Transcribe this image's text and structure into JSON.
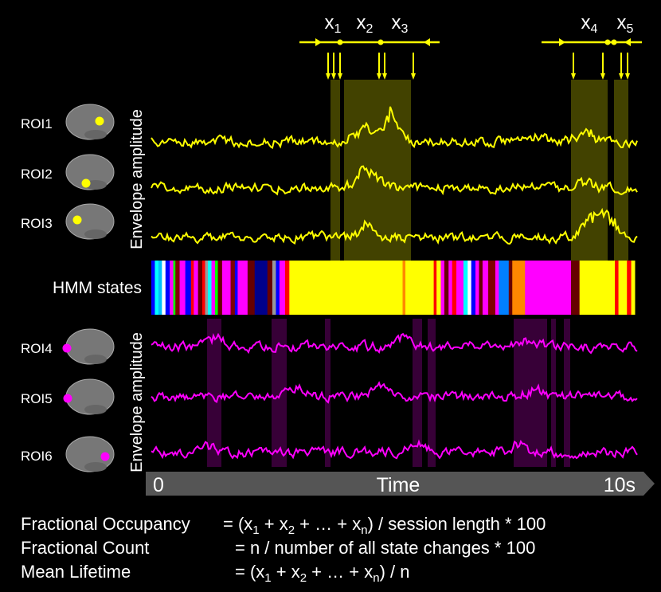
{
  "roi_labels": [
    "ROI1",
    "ROI2",
    "ROI3",
    "ROI4",
    "ROI5",
    "ROI6"
  ],
  "top_axis_label": "Envelope amplitude",
  "bottom_axis_label": "Envelope amplitude",
  "hmm_label": "HMM states",
  "time_axis": {
    "start": "0",
    "label": "Time",
    "end": "10s"
  },
  "intervals": [
    {
      "name": "x",
      "sub": "1"
    },
    {
      "name": "x",
      "sub": "2"
    },
    {
      "name": "x",
      "sub": "3"
    },
    {
      "name": "x",
      "sub": "4"
    },
    {
      "name": "x",
      "sub": "5"
    }
  ],
  "formulas": [
    {
      "name": "Fractional Occupancy",
      "parts": [
        "= (x",
        "1",
        " + x",
        "2",
        " + … + x",
        "n",
        ") / session length * 100"
      ]
    },
    {
      "name": "Fractional Count",
      "parts": [
        "= n / number of all state changes * 100"
      ]
    },
    {
      "name": "Mean Lifetime",
      "parts": [
        "= (x",
        "1",
        " + x",
        "2",
        " + … + x",
        "n",
        ") / n"
      ]
    }
  ]
}
